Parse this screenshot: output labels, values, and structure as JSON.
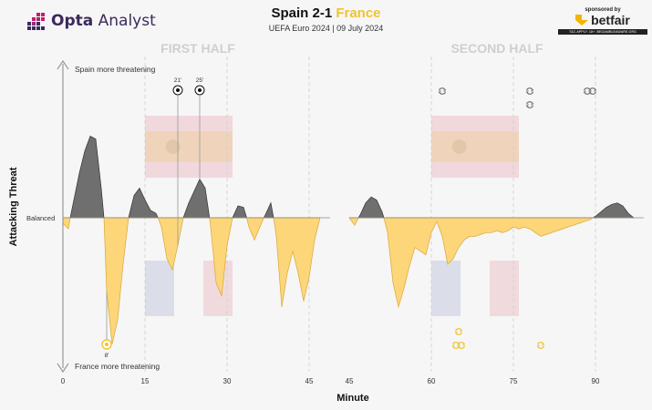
{
  "header": {
    "brand": "Opta Analyst",
    "brand_bold": "Opta",
    "brand_light": "Analyst",
    "title_home": "Spain 2-1",
    "title_away": "France",
    "subtitle": "UEFA Euro 2024 | 09 July 2024",
    "sponsor_small": "sponsored by",
    "sponsor_name": "betfair",
    "sponsor_disclaimer": "T&C APPLY. 18+. BEGAMBLEAWARE.ORG"
  },
  "colors": {
    "spain_fill": "#6f6f6f",
    "france_fill": "#fcd679",
    "france_stroke": "#d9a73a",
    "spain_red": "#c8102e",
    "spain_yellow": "#f1bf00",
    "france_blue": "#1a2a8c",
    "half_label": "#cfcfcf",
    "france_icon": "#f2c230",
    "spain_icon": "#777777"
  },
  "chart_data": {
    "type": "area",
    "title": "Spain 2-1 France",
    "subtitle": "UEFA Euro 2024 | 09 July 2024",
    "xlabel": "Minute",
    "ylabel": "Attacking Threat",
    "baseline_label": "Balanced",
    "top_label": "Spain more threatening",
    "bottom_label": "France more threatening",
    "panels": [
      {
        "label": "FIRST HALF",
        "xlim": [
          0,
          47
        ],
        "ticks": [
          0,
          15,
          30,
          45
        ],
        "tick_labels": [
          "0",
          "15",
          "30",
          "45"
        ]
      },
      {
        "label": "SECOND HALF",
        "xlim": [
          45,
          97
        ],
        "ticks": [
          45,
          60,
          75,
          90
        ],
        "tick_labels": [
          "45",
          "60",
          "75",
          "90"
        ]
      }
    ],
    "ylim": [
      -1,
      1
    ],
    "series": {
      "first_half": {
        "x": [
          0,
          1,
          2,
          3,
          4,
          5,
          6,
          7,
          7.5,
          8,
          9,
          10,
          11,
          12,
          13,
          14,
          15,
          16,
          17,
          18,
          19,
          20,
          21,
          22,
          23,
          24,
          25,
          26,
          27,
          28,
          29,
          30,
          31,
          32,
          33,
          34,
          35,
          36,
          37,
          38,
          39,
          40,
          41,
          42,
          43,
          44,
          45,
          46,
          47
        ],
        "y": [
          -0.03,
          -0.06,
          0.12,
          0.3,
          0.45,
          0.55,
          0.53,
          0.2,
          0.0,
          -0.4,
          -0.68,
          -0.55,
          -0.25,
          0.0,
          0.15,
          0.2,
          0.12,
          0.05,
          0.03,
          -0.05,
          -0.22,
          -0.28,
          -0.15,
          0.0,
          0.1,
          0.18,
          0.26,
          0.2,
          -0.05,
          -0.35,
          -0.42,
          -0.15,
          0.0,
          0.08,
          0.07,
          -0.05,
          -0.12,
          -0.05,
          0.02,
          0.1,
          -0.1,
          -0.48,
          -0.3,
          -0.18,
          -0.3,
          -0.45,
          -0.32,
          -0.12,
          0.0
        ]
      },
      "second_half": {
        "x": [
          45,
          46,
          47,
          48,
          49,
          50,
          51,
          52,
          53,
          54,
          55,
          56,
          57,
          58,
          59,
          60,
          61,
          62,
          63,
          64,
          65,
          66,
          67,
          68,
          69,
          70,
          71,
          72,
          73,
          74,
          75,
          76,
          77,
          78,
          79,
          80,
          81,
          82,
          83,
          84,
          85,
          86,
          87,
          88,
          89,
          90,
          91,
          92,
          93,
          94,
          95,
          96,
          97
        ],
        "y": [
          0.0,
          -0.04,
          0.02,
          0.1,
          0.14,
          0.12,
          0.04,
          -0.08,
          -0.35,
          -0.48,
          -0.38,
          -0.26,
          -0.16,
          -0.18,
          -0.2,
          -0.08,
          -0.02,
          -0.1,
          -0.25,
          -0.22,
          -0.16,
          -0.12,
          -0.1,
          -0.1,
          -0.09,
          -0.08,
          -0.08,
          -0.07,
          -0.08,
          -0.07,
          -0.05,
          -0.06,
          -0.05,
          -0.06,
          -0.08,
          -0.1,
          -0.09,
          -0.08,
          -0.07,
          -0.06,
          -0.05,
          -0.04,
          -0.03,
          -0.02,
          -0.01,
          0.01,
          0.04,
          0.07,
          0.09,
          0.1,
          0.08,
          0.03,
          0.0
        ]
      }
    },
    "goals": [
      {
        "team": "France",
        "minute": 8,
        "label": "8'"
      },
      {
        "team": "Spain",
        "minute": 21,
        "label": "21'"
      },
      {
        "team": "Spain",
        "minute": 25,
        "label": "25'"
      }
    ],
    "substitutions": [
      {
        "team": "Spain",
        "minute": 62,
        "count": 1,
        "row": 1
      },
      {
        "team": "Spain",
        "minute": 78,
        "count": 1,
        "row": 1
      },
      {
        "team": "Spain",
        "minute": 78,
        "count": 1,
        "row": 2
      },
      {
        "team": "Spain",
        "minute": 89,
        "count": 2,
        "row": 1
      },
      {
        "team": "France",
        "minute": 65,
        "count": 1,
        "row": 1
      },
      {
        "team": "France",
        "minute": 65,
        "count": 2,
        "row": 2
      },
      {
        "team": "France",
        "minute": 80,
        "count": 1,
        "row": 2
      }
    ],
    "flag_spans": [
      {
        "team": "Spain",
        "from": 15,
        "to": 31
      },
      {
        "team": "France",
        "from": 15,
        "to": 31
      },
      {
        "team": "Spain",
        "from": 60,
        "to": 76
      },
      {
        "team": "France",
        "from": 60,
        "to": 76
      }
    ]
  }
}
